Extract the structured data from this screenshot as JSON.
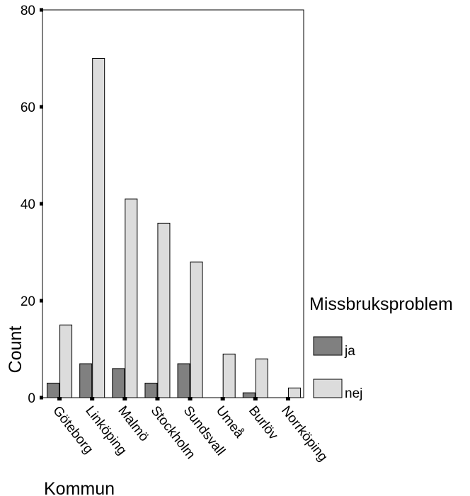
{
  "chart_data": {
    "type": "bar",
    "title": "",
    "xlabel": "Kommun",
    "ylabel": "Count",
    "ylim": [
      0,
      80
    ],
    "yticks": [
      0,
      20,
      40,
      60,
      80
    ],
    "grid": false,
    "legend_position": "right",
    "legend_title": "Missbruksproblem",
    "categories": [
      "Göteborg",
      "Linköping",
      "Malmö",
      "Stockholm",
      "Sundsvall",
      "Umeå",
      "Burlöv",
      "Norrköping"
    ],
    "series": [
      {
        "name": "ja",
        "color": "#808080",
        "values": [
          3,
          7,
          6,
          3,
          7,
          0,
          1,
          0
        ]
      },
      {
        "name": "nej",
        "color": "#dcdcdc",
        "values": [
          15,
          70,
          41,
          36,
          28,
          9,
          8,
          2
        ]
      }
    ]
  }
}
